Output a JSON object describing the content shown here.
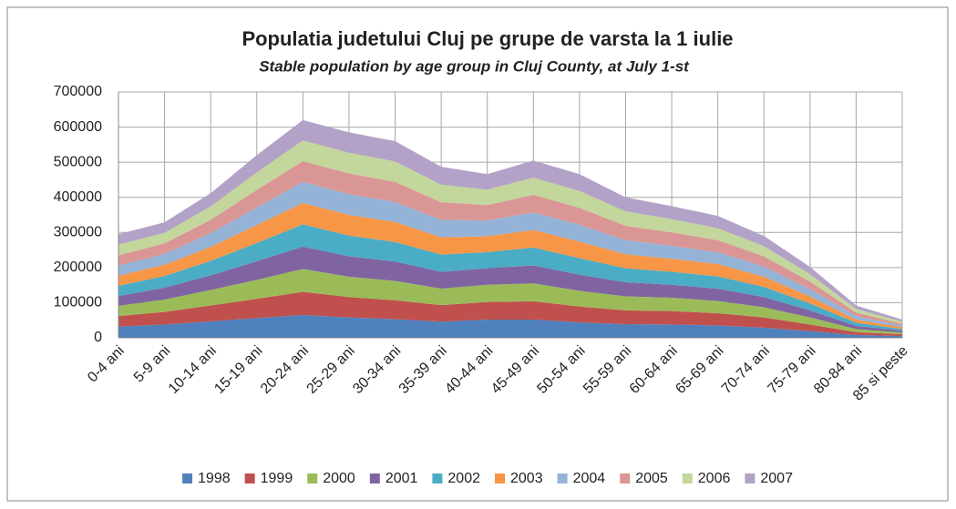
{
  "chart_data": {
    "type": "stacked_area",
    "title": "Populatia judetului Cluj pe grupe de varsta la 1 iulie",
    "subtitle": "Stable population by age group in Cluj County, at July 1-st",
    "categories": [
      "0-4 ani",
      "5-9 ani",
      "10-14 ani",
      "15-19 ani",
      "20-24 ani",
      "25-29 ani",
      "30-34 ani",
      "35-39 ani",
      "40-44 ani",
      "45-49 ani",
      "50-54 ani",
      "55-59 ani",
      "60-64 ani",
      "65-69 ani",
      "70-74 ani",
      "75-79 ani",
      "80-84 ani",
      "85 si peste"
    ],
    "ylim": [
      0,
      700000
    ],
    "yticks": [
      0,
      100000,
      200000,
      300000,
      400000,
      500000,
      600000,
      700000
    ],
    "grid": true,
    "legend": "bottom",
    "series": [
      {
        "name": "1998",
        "color": "#4f81bd",
        "values": [
          32000,
          38000,
          47000,
          56000,
          65000,
          58000,
          53000,
          46000,
          52000,
          52000,
          44000,
          39000,
          38000,
          35000,
          29000,
          19000,
          8000,
          5000
        ]
      },
      {
        "name": "1999",
        "color": "#c0504d",
        "values": [
          30000,
          36000,
          45000,
          55000,
          66000,
          58000,
          54000,
          47000,
          50000,
          52000,
          45000,
          39000,
          38000,
          35000,
          29000,
          19000,
          8000,
          5000
        ]
      },
      {
        "name": "2000",
        "color": "#9bbb59",
        "values": [
          29000,
          35000,
          44000,
          54000,
          65000,
          58000,
          55000,
          47000,
          49000,
          51000,
          45000,
          40000,
          38000,
          35000,
          29000,
          20000,
          9000,
          5000
        ]
      },
      {
        "name": "2001",
        "color": "#8064a2",
        "values": [
          28000,
          34000,
          42000,
          53000,
          64000,
          58000,
          55000,
          48000,
          47000,
          51000,
          46000,
          40000,
          37000,
          35000,
          29000,
          20000,
          9000,
          5000
        ]
      },
      {
        "name": "2002",
        "color": "#4bacc6",
        "values": [
          29000,
          33000,
          41000,
          52000,
          63000,
          59000,
          56000,
          49000,
          46000,
          51000,
          47000,
          40000,
          37000,
          35000,
          29000,
          20000,
          9000,
          5000
        ]
      },
      {
        "name": "2003",
        "color": "#f79646",
        "values": [
          29000,
          32000,
          40000,
          51000,
          61000,
          59000,
          57000,
          49000,
          45000,
          50000,
          47000,
          40000,
          37000,
          35000,
          29000,
          20000,
          9000,
          5000
        ]
      },
      {
        "name": "2004",
        "color": "#95b3d7",
        "values": [
          29000,
          31000,
          39000,
          50000,
          60000,
          59000,
          57000,
          50000,
          45000,
          50000,
          48000,
          40000,
          37000,
          34000,
          29000,
          21000,
          10000,
          5000
        ]
      },
      {
        "name": "2005",
        "color": "#da9694",
        "values": [
          29000,
          30000,
          38000,
          50000,
          59000,
          59000,
          57000,
          50000,
          44000,
          50000,
          48000,
          41000,
          38000,
          34000,
          29000,
          21000,
          10000,
          5000
        ]
      },
      {
        "name": "2006",
        "color": "#c3d69b",
        "values": [
          30000,
          30000,
          38000,
          50000,
          59000,
          59000,
          58000,
          50000,
          44000,
          49000,
          48000,
          41000,
          38000,
          34000,
          29000,
          21000,
          10000,
          6000
        ]
      },
      {
        "name": "2007",
        "color": "#b3a2c7",
        "values": [
          30000,
          30000,
          38000,
          49000,
          58000,
          58000,
          58000,
          51000,
          44000,
          49000,
          48000,
          40000,
          37000,
          35000,
          29000,
          21000,
          10000,
          6000
        ]
      }
    ]
  }
}
